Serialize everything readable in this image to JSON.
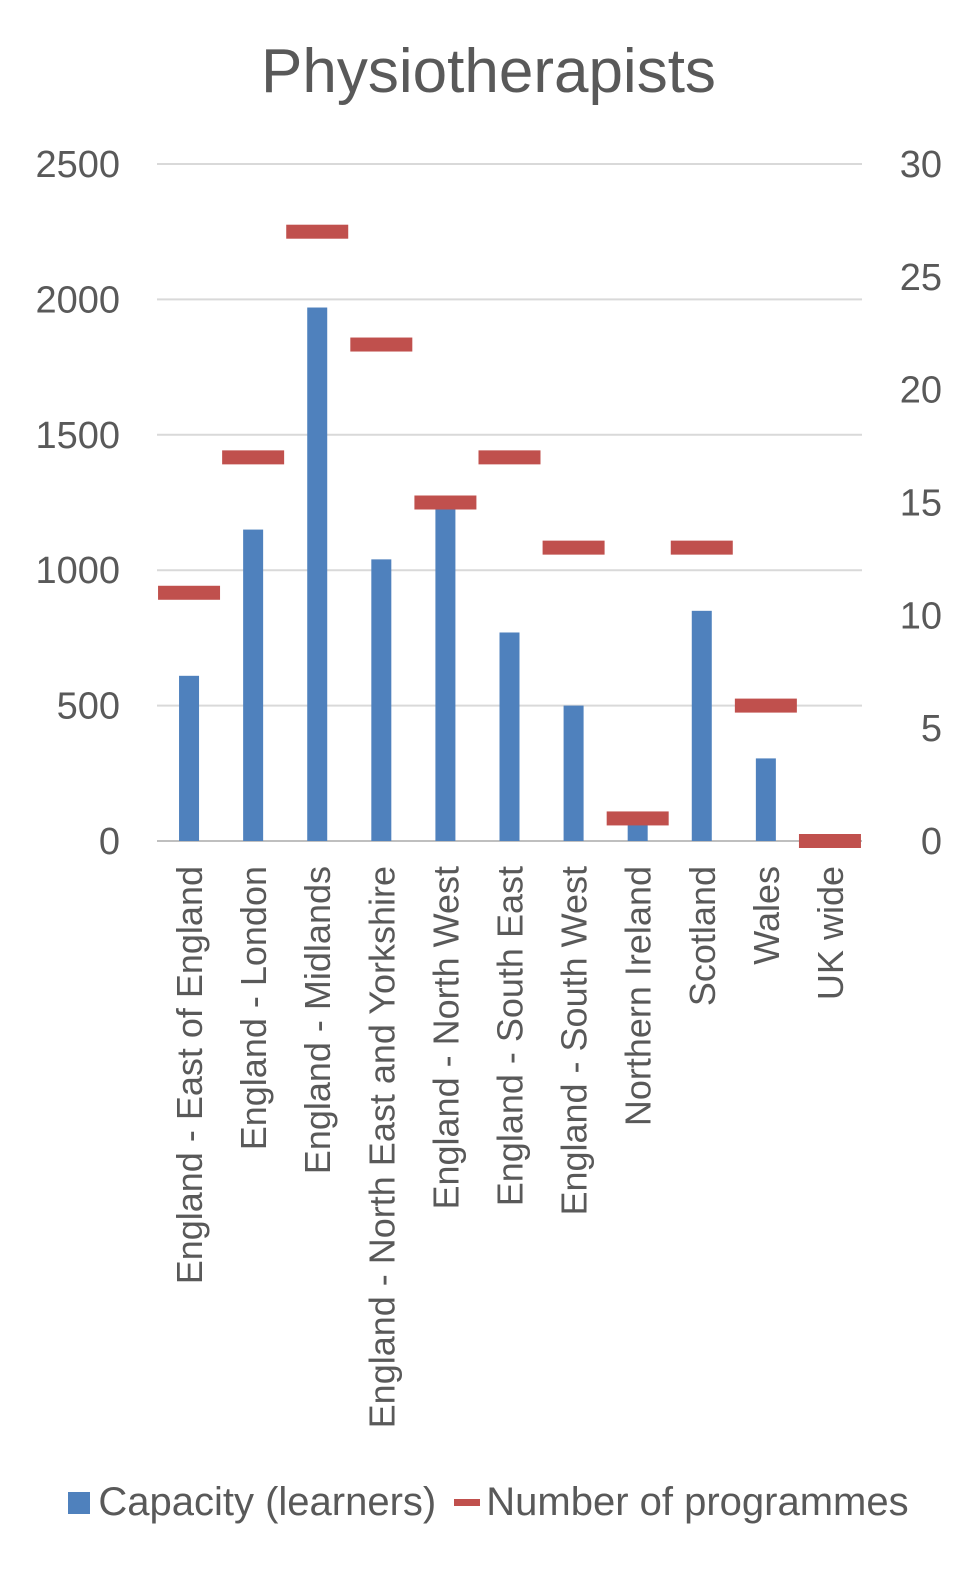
{
  "chart_data": {
    "type": "bar",
    "title": "Physiotherapists",
    "categories": [
      "England - East of England",
      "England - London",
      "England - Midlands",
      "England - North East and Yorkshire",
      "England - North West",
      "England - South East",
      "England - South West",
      "Northern Ireland",
      "Scotland",
      "Wales",
      "UK wide"
    ],
    "series": [
      {
        "name": "Capacity (learners)",
        "axis": "left",
        "values": [
          610,
          1150,
          1970,
          1040,
          1250,
          770,
          500,
          80,
          850,
          305,
          0
        ],
        "color": "#4f81bd"
      },
      {
        "name": "Number of programmes",
        "axis": "right",
        "values": [
          11,
          17,
          27,
          22,
          15,
          17,
          13,
          1,
          13,
          6,
          0
        ],
        "color": "#c0504d"
      }
    ],
    "ylim_left": [
      0,
      2500
    ],
    "yticks_left": [
      "0",
      "500",
      "1000",
      "1500",
      "2000",
      "2500"
    ],
    "ylim_right": [
      0,
      30
    ],
    "yticks_right": [
      "0",
      "5",
      "10",
      "15",
      "20",
      "25",
      "30"
    ],
    "gridlines": true,
    "legend_position": "bottom"
  }
}
